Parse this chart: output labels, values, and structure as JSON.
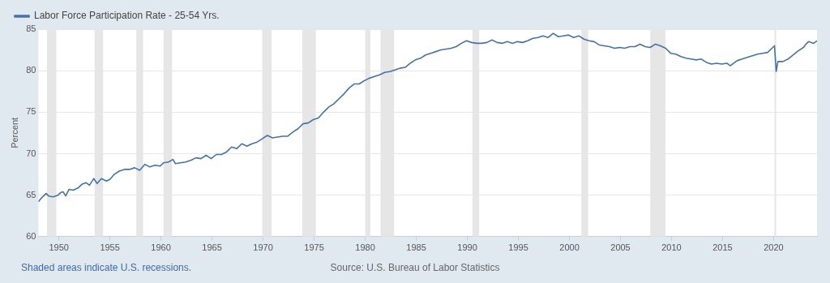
{
  "chart_data": {
    "type": "line",
    "ylabel": "Percent",
    "legend": "top left",
    "grid": "y",
    "marker": "none",
    "line_style": "solid",
    "xlim": [
      "1948-01",
      "2024-04"
    ],
    "xticks": [
      "1950",
      "1955",
      "1960",
      "1965",
      "1970",
      "1975",
      "1980",
      "1985",
      "1990",
      "1995",
      "2000",
      "2005",
      "2010",
      "2015",
      "2020"
    ],
    "ylim": [
      60,
      85
    ],
    "yticks": [
      60,
      65,
      70,
      75,
      80,
      85
    ],
    "x": [
      "1948-01",
      "1948-04",
      "1948-07",
      "1948-10",
      "1949-01",
      "1949-06",
      "1949-12",
      "1950-03",
      "1950-06",
      "1950-09",
      "1951-01",
      "1951-06",
      "1951-12",
      "1952-04",
      "1952-09",
      "1953-01",
      "1953-06",
      "1953-10",
      "1954-03",
      "1954-09",
      "1955-01",
      "1955-06",
      "1955-12",
      "1956-06",
      "1956-12",
      "1957-06",
      "1957-12",
      "1958-06",
      "1958-12",
      "1959-06",
      "1959-12",
      "1960-04",
      "1960-10",
      "1961-03",
      "1961-06",
      "1961-12",
      "1962-06",
      "1962-12",
      "1963-06",
      "1963-12",
      "1964-06",
      "1964-12",
      "1965-06",
      "1965-12",
      "1966-06",
      "1966-12",
      "1967-06",
      "1967-12",
      "1968-06",
      "1968-12",
      "1969-06",
      "1969-12",
      "1970-06",
      "1970-12",
      "1971-06",
      "1971-12",
      "1972-06",
      "1972-12",
      "1973-06",
      "1973-12",
      "1974-06",
      "1974-12",
      "1975-06",
      "1975-12",
      "1976-06",
      "1976-12",
      "1977-06",
      "1977-12",
      "1978-06",
      "1978-12",
      "1979-06",
      "1979-12",
      "1980-06",
      "1980-12",
      "1981-06",
      "1981-12",
      "1982-06",
      "1982-12",
      "1983-06",
      "1983-12",
      "1984-06",
      "1984-12",
      "1985-06",
      "1985-12",
      "1986-06",
      "1986-12",
      "1987-06",
      "1987-12",
      "1988-06",
      "1988-12",
      "1989-06",
      "1989-12",
      "1990-06",
      "1990-12",
      "1991-06",
      "1991-12",
      "1992-06",
      "1992-12",
      "1993-06",
      "1993-12",
      "1994-06",
      "1994-12",
      "1995-06",
      "1995-12",
      "1996-06",
      "1996-12",
      "1997-06",
      "1997-12",
      "1998-06",
      "1998-12",
      "1999-06",
      "1999-12",
      "2000-06",
      "2000-12",
      "2001-06",
      "2001-12",
      "2002-06",
      "2002-12",
      "2003-06",
      "2003-12",
      "2004-06",
      "2004-12",
      "2005-06",
      "2005-12",
      "2006-06",
      "2006-12",
      "2007-06",
      "2007-12",
      "2008-06",
      "2008-12",
      "2009-06",
      "2009-12",
      "2010-06",
      "2010-12",
      "2011-06",
      "2011-12",
      "2012-06",
      "2012-12",
      "2013-06",
      "2013-12",
      "2014-06",
      "2014-12",
      "2015-06",
      "2015-10",
      "2016-06",
      "2016-12",
      "2017-06",
      "2017-12",
      "2018-06",
      "2018-12",
      "2019-06",
      "2019-12",
      "2020-02",
      "2020-04",
      "2020-06",
      "2020-12",
      "2021-06",
      "2021-12",
      "2022-06",
      "2022-12",
      "2023-03",
      "2023-06",
      "2023-12",
      "2024-04"
    ],
    "series": [
      {
        "name": "Labor Force Participation Rate - 25-54 Yrs.",
        "color": "#4572a7",
        "values": [
          64.2,
          64.6,
          64.9,
          65.2,
          64.9,
          64.8,
          65.0,
          65.3,
          65.4,
          64.9,
          65.7,
          65.6,
          65.9,
          66.3,
          66.5,
          66.2,
          67.0,
          66.4,
          67.0,
          66.7,
          66.9,
          67.5,
          67.9,
          68.1,
          68.1,
          68.3,
          68.0,
          68.7,
          68.4,
          68.6,
          68.5,
          68.9,
          69.0,
          69.3,
          68.8,
          68.9,
          69.0,
          69.2,
          69.5,
          69.4,
          69.8,
          69.4,
          69.9,
          69.9,
          70.2,
          70.8,
          70.6,
          71.2,
          70.9,
          71.2,
          71.4,
          71.8,
          72.2,
          71.9,
          72.0,
          72.1,
          72.1,
          72.6,
          73.0,
          73.6,
          73.7,
          74.1,
          74.3,
          75.0,
          75.6,
          76.0,
          76.6,
          77.2,
          77.9,
          78.4,
          78.4,
          78.8,
          79.1,
          79.3,
          79.5,
          79.8,
          79.9,
          80.1,
          80.3,
          80.4,
          80.9,
          81.3,
          81.5,
          81.9,
          82.1,
          82.3,
          82.5,
          82.6,
          82.7,
          82.9,
          83.3,
          83.6,
          83.4,
          83.3,
          83.3,
          83.4,
          83.7,
          83.4,
          83.3,
          83.5,
          83.3,
          83.5,
          83.4,
          83.6,
          83.9,
          84.0,
          84.2,
          84.0,
          84.5,
          84.1,
          84.2,
          84.3,
          84.0,
          84.2,
          83.8,
          83.6,
          83.5,
          83.1,
          83.0,
          82.9,
          82.7,
          82.8,
          82.7,
          82.9,
          82.9,
          83.2,
          82.9,
          82.8,
          83.2,
          83.0,
          82.7,
          82.1,
          82.0,
          81.7,
          81.5,
          81.4,
          81.3,
          81.4,
          81.0,
          80.8,
          80.9,
          80.8,
          80.9,
          80.6,
          81.2,
          81.4,
          81.6,
          81.8,
          82.0,
          82.1,
          82.2,
          82.8,
          83.0,
          79.9,
          81.1,
          81.1,
          81.4,
          81.9,
          82.4,
          82.8,
          83.2,
          83.5,
          83.3,
          83.6
        ]
      }
    ],
    "bands": [
      {
        "axis": "x",
        "from": "1948-11",
        "to": "1949-10",
        "color": "#e6e6e6"
      },
      {
        "axis": "x",
        "from": "1953-07",
        "to": "1954-05",
        "color": "#e6e6e6"
      },
      {
        "axis": "x",
        "from": "1957-08",
        "to": "1958-04",
        "color": "#e6e6e6"
      },
      {
        "axis": "x",
        "from": "1960-04",
        "to": "1961-02",
        "color": "#e6e6e6"
      },
      {
        "axis": "x",
        "from": "1969-12",
        "to": "1970-11",
        "color": "#e6e6e6"
      },
      {
        "axis": "x",
        "from": "1973-11",
        "to": "1975-03",
        "color": "#e6e6e6"
      },
      {
        "axis": "x",
        "from": "1980-01",
        "to": "1980-07",
        "color": "#e6e6e6"
      },
      {
        "axis": "x",
        "from": "1981-07",
        "to": "1982-11",
        "color": "#e6e6e6"
      },
      {
        "axis": "x",
        "from": "1990-07",
        "to": "1991-03",
        "color": "#e6e6e6"
      },
      {
        "axis": "x",
        "from": "2001-03",
        "to": "2001-11",
        "color": "#e6e6e6"
      },
      {
        "axis": "x",
        "from": "2007-12",
        "to": "2009-06",
        "color": "#e6e6e6"
      },
      {
        "axis": "x",
        "from": "2020-02",
        "to": "2020-04",
        "color": "#e6e6e6"
      }
    ],
    "annotations": [
      "Shaded areas indicate U.S. recessions.",
      "Source: U.S. Bureau of Labor Statistics"
    ]
  }
}
